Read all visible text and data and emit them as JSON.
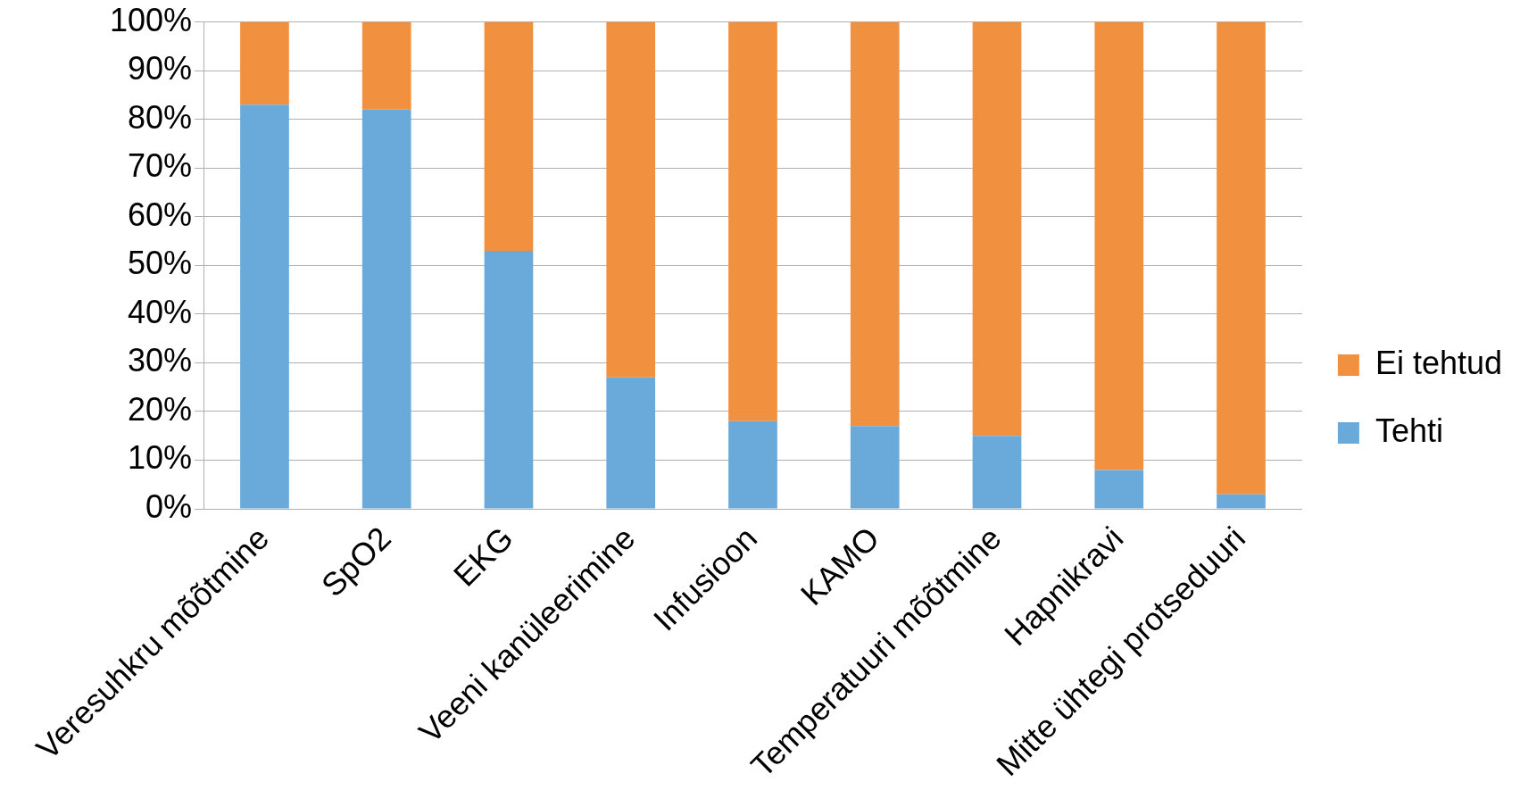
{
  "chart_data": {
    "type": "bar",
    "stacked": true,
    "categories": [
      "Veresuhkru mõõtmine",
      "SpO2",
      "EKG",
      "Veeni kanüleerimine",
      "Infusioon",
      "KAMO",
      "Temperatuuri mõõtmine",
      "Hapnikravi",
      "Mitte ühtegi protseduuri"
    ],
    "series": [
      {
        "name": "Tehti",
        "color": "#6aaadb",
        "values": [
          83,
          82,
          53,
          27,
          18,
          17,
          15,
          8,
          3
        ]
      },
      {
        "name": "Ei tehtud",
        "color": "#f19140",
        "values": [
          17,
          18,
          47,
          73,
          82,
          83,
          85,
          92,
          97
        ]
      }
    ],
    "ylim": [
      0,
      100
    ],
    "yticks": [
      {
        "value": 0,
        "label": "0%"
      },
      {
        "value": 10,
        "label": "10%"
      },
      {
        "value": 20,
        "label": "20%"
      },
      {
        "value": 30,
        "label": "30%"
      },
      {
        "value": 40,
        "label": "40%"
      },
      {
        "value": 50,
        "label": "50%"
      },
      {
        "value": 60,
        "label": "60%"
      },
      {
        "value": 70,
        "label": "70%"
      },
      {
        "value": 80,
        "label": "80%"
      },
      {
        "value": 90,
        "label": "90%"
      },
      {
        "value": 100,
        "label": "100%"
      }
    ],
    "grid": "y",
    "legend": "right"
  }
}
